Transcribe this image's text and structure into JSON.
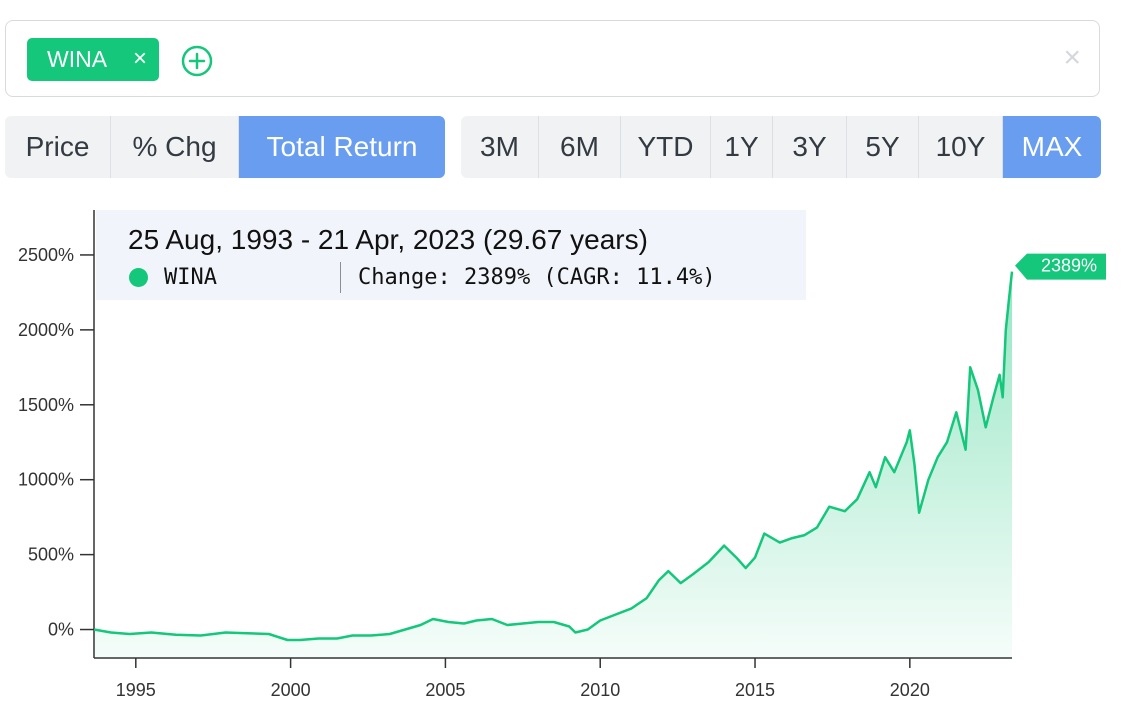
{
  "ticker_bar": {
    "chips": [
      {
        "label": "WINA",
        "remove": "×"
      }
    ],
    "add_icon": "plus-circle-icon",
    "clear_label": "×"
  },
  "mode_tabs": [
    {
      "label": "Price",
      "active": false
    },
    {
      "label": "% Chg",
      "active": false
    },
    {
      "label": "Total Return",
      "active": true
    }
  ],
  "range_tabs": [
    {
      "label": "3M",
      "active": false
    },
    {
      "label": "6M",
      "active": false
    },
    {
      "label": "YTD",
      "active": false
    },
    {
      "label": "1Y",
      "active": false
    },
    {
      "label": "3Y",
      "active": false
    },
    {
      "label": "5Y",
      "active": false
    },
    {
      "label": "10Y",
      "active": false
    },
    {
      "label": "MAX",
      "active": true
    }
  ],
  "colors": {
    "accent": "#14c77b",
    "active_tab": "#689df0"
  },
  "tooltip": {
    "range": "25 Aug, 1993 - 21 Apr, 2023 (29.67 years)",
    "series": "WINA",
    "change": "Change: 2389% (CAGR: 11.4%)"
  },
  "chart_data": {
    "type": "area",
    "series": [
      {
        "name": "WINA",
        "x": [
          1993.65,
          1994.2,
          1994.8,
          1995.5,
          1996.3,
          1997.1,
          1997.9,
          1998.6,
          1999.3,
          1999.9,
          2000.3,
          2000.9,
          2001.5,
          2002.0,
          2002.6,
          2003.2,
          2003.7,
          2004.2,
          2004.6,
          2005.1,
          2005.6,
          2006.0,
          2006.5,
          2007.0,
          2007.5,
          2008.0,
          2008.5,
          2009.0,
          2009.2,
          2009.6,
          2010.0,
          2010.5,
          2011.0,
          2011.5,
          2011.9,
          2012.2,
          2012.6,
          2013.0,
          2013.5,
          2014.0,
          2014.4,
          2014.7,
          2015.0,
          2015.3,
          2015.8,
          2016.2,
          2016.6,
          2017.0,
          2017.4,
          2017.9,
          2018.3,
          2018.7,
          2018.9,
          2019.2,
          2019.5,
          2019.9,
          2020.0,
          2020.15,
          2020.3,
          2020.6,
          2020.9,
          2021.2,
          2021.5,
          2021.8,
          2021.95,
          2022.2,
          2022.45,
          2022.7,
          2022.9,
          2023.0,
          2023.1,
          2023.2,
          2023.3
        ],
        "values": [
          0,
          -20,
          -30,
          -20,
          -35,
          -40,
          -20,
          -25,
          -30,
          -70,
          -70,
          -60,
          -60,
          -40,
          -40,
          -30,
          0,
          30,
          70,
          50,
          40,
          60,
          70,
          30,
          40,
          50,
          50,
          20,
          -20,
          0,
          60,
          100,
          140,
          210,
          330,
          390,
          310,
          370,
          450,
          560,
          480,
          410,
          480,
          640,
          580,
          610,
          630,
          680,
          820,
          790,
          870,
          1050,
          950,
          1150,
          1050,
          1250,
          1330,
          1100,
          780,
          1000,
          1150,
          1250,
          1450,
          1200,
          1750,
          1600,
          1350,
          1550,
          1700,
          1550,
          2000,
          2200,
          2389
        ]
      }
    ],
    "end_label": "2389%",
    "y_ticks": [
      "0%",
      "500%",
      "1000%",
      "1500%",
      "2000%",
      "2500%"
    ],
    "x_ticks": [
      "1995",
      "2000",
      "2005",
      "2010",
      "2015",
      "2020"
    ],
    "ylim": [
      -190,
      2800
    ],
    "xlim": [
      1993.65,
      2023.3
    ],
    "grid": false
  }
}
